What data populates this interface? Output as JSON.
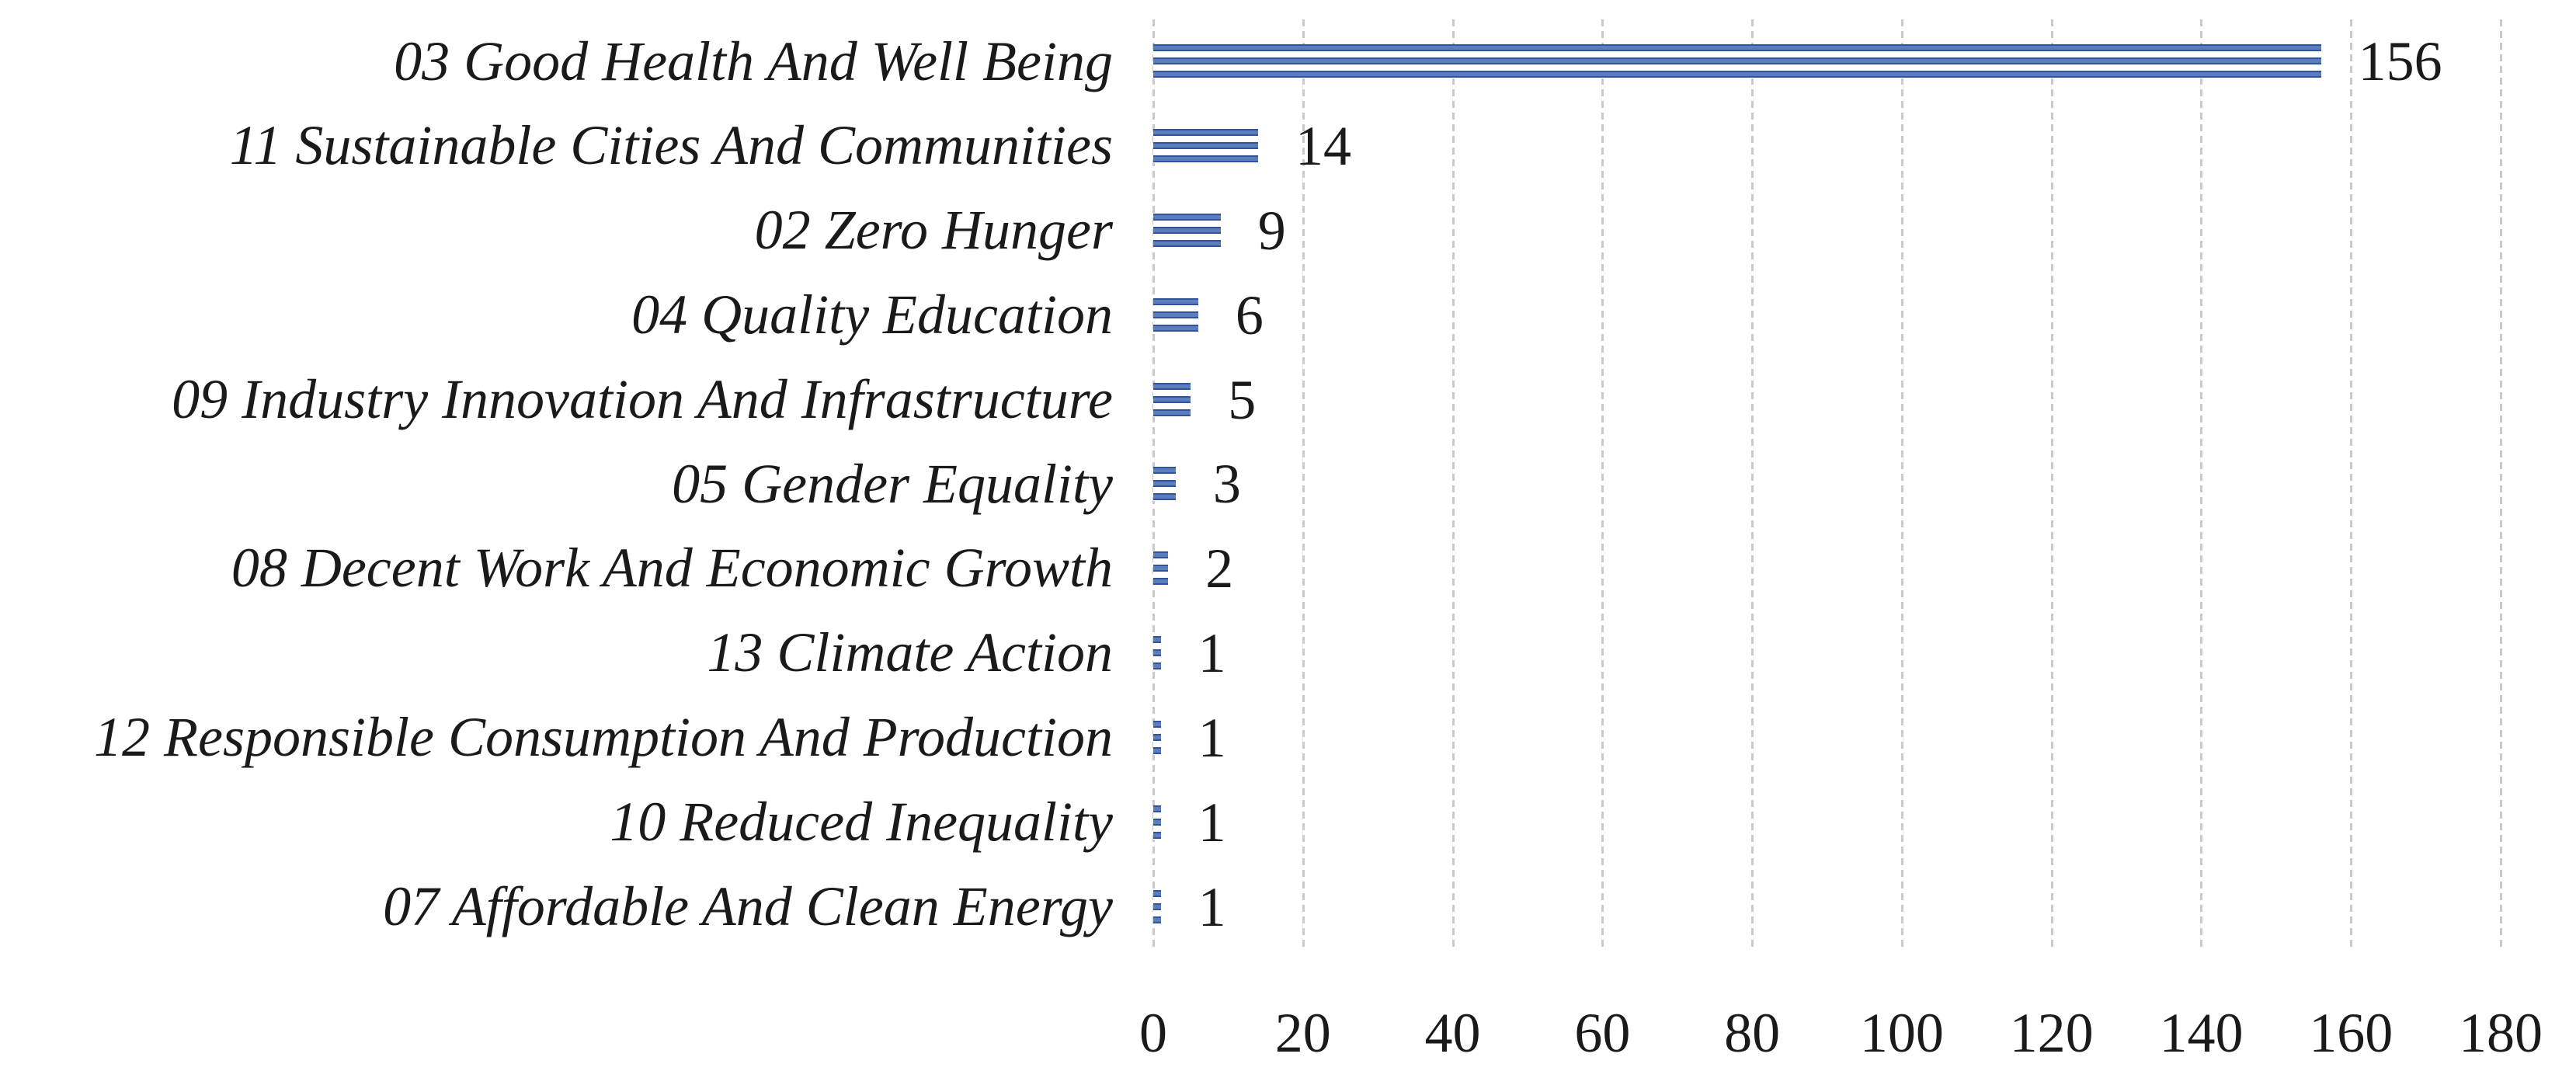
{
  "chart_data": {
    "type": "bar",
    "orientation": "horizontal",
    "title": "",
    "xlabel": "",
    "ylabel": "",
    "categories": [
      "03 Good Health And Well Being",
      "11 Sustainable Cities And Communities",
      "02 Zero Hunger",
      "04 Quality Education",
      "09 Industry Innovation And Infrastructure",
      "05 Gender Equality",
      "08 Decent Work And Economic Growth",
      "13 Climate Action",
      "12 Responsible Consumption And Production",
      "10 Reduced Inequality",
      "07 Affordable And Clean Energy"
    ],
    "values": [
      156,
      14,
      9,
      6,
      5,
      3,
      2,
      1,
      1,
      1,
      1
    ],
    "data_labels": [
      "156",
      "14",
      "9",
      "6",
      "5",
      "3",
      "2",
      "1",
      "1",
      "1",
      "1"
    ],
    "x_ticks": [
      0,
      20,
      40,
      60,
      80,
      100,
      120,
      140,
      160,
      180
    ],
    "xlim": [
      0,
      180
    ],
    "grid": "vertical dashed gridlines at every x tick",
    "legend_position": "none",
    "bar_fill_pattern": "light-horizontal blue stripes on white",
    "colors": {
      "bar_stripe_dark": "#30549a",
      "bar_stripe_mid": "#5b7dbd",
      "bar_background": "#ffffff",
      "gridline": "#c9c9c9",
      "text": "#1a1a1a",
      "background": "#ffffff"
    }
  }
}
